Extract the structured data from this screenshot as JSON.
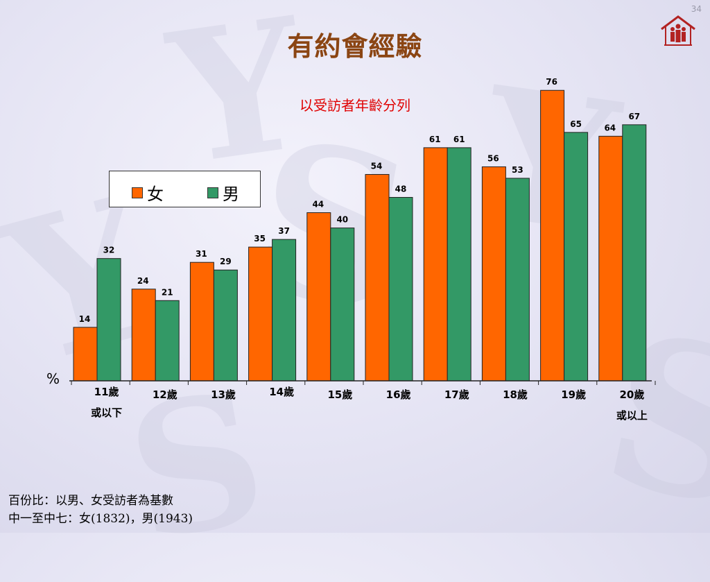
{
  "page_number": "34",
  "title": "有約會經驗",
  "chart_data": {
    "type": "bar",
    "title": "",
    "subtitle": "以受訪者年齡分列",
    "ylabel": "%",
    "xlabel": "",
    "ylim": [
      0,
      85
    ],
    "categories": [
      [
        "11歲",
        "或以下"
      ],
      [
        "12歲"
      ],
      [
        "13歲"
      ],
      [
        "14歲"
      ],
      [
        "15歲"
      ],
      [
        "16歲"
      ],
      [
        "17歲"
      ],
      [
        "18歲"
      ],
      [
        "19歲"
      ],
      [
        "20歲",
        "或以上"
      ]
    ],
    "series": [
      {
        "name": "女",
        "color": "#ff6600",
        "values": [
          14,
          24,
          31,
          35,
          44,
          54,
          61,
          56,
          76,
          64
        ]
      },
      {
        "name": "男",
        "color": "#339966",
        "values": [
          32,
          21,
          29,
          37,
          40,
          48,
          61,
          53,
          65,
          67
        ]
      }
    ],
    "legend_position": "top-left",
    "grid": false
  },
  "footnote": {
    "line1": "百份比：以男、女受訪者為基數",
    "line2": "中一至中七：女(1832)，男(1943)"
  }
}
